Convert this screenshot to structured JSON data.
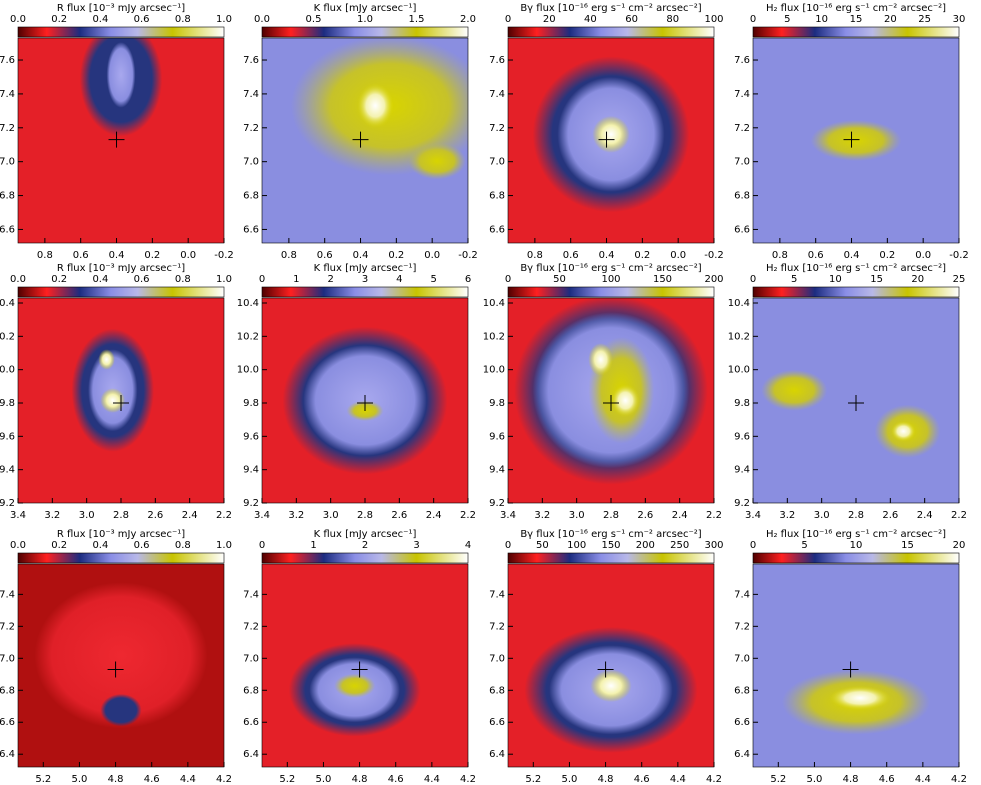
{
  "rows": [
    {
      "xlim": [
        0.95,
        -0.2
      ],
      "ylim": [
        6.52,
        7.73
      ],
      "xticks": [
        {
          "value": 0.8,
          "label": "0.8"
        },
        {
          "value": 0.6,
          "label": "0.6"
        },
        {
          "value": 0.4,
          "label": "0.4"
        },
        {
          "value": 0.2,
          "label": "0.2"
        },
        {
          "value": 0.0,
          "label": "0.0"
        },
        {
          "value": -0.2,
          "label": "-0.2"
        }
      ],
      "yticks": [
        {
          "value": 6.6,
          "label": "6.6"
        },
        {
          "value": 6.8,
          "label": "6.8"
        },
        {
          "value": 7.0,
          "label": "7.0"
        },
        {
          "value": 7.2,
          "label": "7.2"
        },
        {
          "value": 7.4,
          "label": "7.4"
        },
        {
          "value": 7.6,
          "label": "7.6"
        }
      ],
      "marker": [
        0.4,
        7.13
      ],
      "panels": [
        {
          "label": "R flux [10⁻³ mJy arcsec⁻¹]",
          "cbar_ticks": [
            "0.0",
            "0.2",
            "0.4",
            "0.6",
            "0.8",
            "1.0"
          ]
        },
        {
          "label": "K flux [mJy arcsec⁻¹]",
          "cbar_ticks": [
            "0.0",
            "0.5",
            "1.0",
            "1.5",
            "2.0"
          ]
        },
        {
          "label": "Bγ flux [10⁻¹⁶ erg s⁻¹ cm⁻² arcsec⁻²]",
          "cbar_ticks": [
            "0",
            "20",
            "40",
            "60",
            "80",
            "100"
          ]
        },
        {
          "label": "H₂ flux [10⁻¹⁶ erg s⁻¹ cm⁻² arcsec⁻²]",
          "cbar_ticks": [
            "0",
            "5",
            "10",
            "15",
            "20",
            "25",
            "30"
          ]
        }
      ]
    },
    {
      "xlim": [
        3.4,
        2.2
      ],
      "ylim": [
        9.2,
        10.43
      ],
      "xticks": [
        {
          "value": 3.4,
          "label": "3.4"
        },
        {
          "value": 3.2,
          "label": "3.2"
        },
        {
          "value": 3.0,
          "label": "3.0"
        },
        {
          "value": 2.8,
          "label": "2.8"
        },
        {
          "value": 2.6,
          "label": "2.6"
        },
        {
          "value": 2.4,
          "label": "2.4"
        },
        {
          "value": 2.2,
          "label": "2.2"
        }
      ],
      "yticks": [
        {
          "value": 9.2,
          "label": "9.2"
        },
        {
          "value": 9.4,
          "label": "9.4"
        },
        {
          "value": 9.6,
          "label": "9.6"
        },
        {
          "value": 9.8,
          "label": "9.8"
        },
        {
          "value": 10.0,
          "label": "10.0"
        },
        {
          "value": 10.2,
          "label": "10.2"
        },
        {
          "value": 10.4,
          "label": "10.4"
        }
      ],
      "marker": [
        2.8,
        9.8
      ],
      "panels": [
        {
          "label": "R flux [10⁻³ mJy arcsec⁻¹]",
          "cbar_ticks": [
            "0.0",
            "0.2",
            "0.4",
            "0.6",
            "0.8",
            "1.0"
          ]
        },
        {
          "label": "K flux [mJy arcsec⁻¹]",
          "cbar_ticks": [
            "0",
            "1",
            "2",
            "3",
            "4",
            "5",
            "6"
          ]
        },
        {
          "label": "Bγ flux [10⁻¹⁶ erg s⁻¹ cm⁻² arcsec⁻²]",
          "cbar_ticks": [
            "0",
            "50",
            "100",
            "150",
            "200"
          ]
        },
        {
          "label": "H₂ flux [10⁻¹⁶ erg s⁻¹ cm⁻² arcsec⁻²]",
          "cbar_ticks": [
            "0",
            "5",
            "10",
            "15",
            "20",
            "25"
          ]
        }
      ]
    },
    {
      "xlim": [
        5.34,
        4.2
      ],
      "ylim": [
        6.32,
        7.59
      ],
      "xticks": [
        {
          "value": 5.2,
          "label": "5.2"
        },
        {
          "value": 5.0,
          "label": "5.0"
        },
        {
          "value": 4.8,
          "label": "4.8"
        },
        {
          "value": 4.6,
          "label": "4.6"
        },
        {
          "value": 4.4,
          "label": "4.4"
        },
        {
          "value": 4.2,
          "label": "4.2"
        }
      ],
      "yticks": [
        {
          "value": 6.4,
          "label": "6.4"
        },
        {
          "value": 6.6,
          "label": "6.6"
        },
        {
          "value": 6.8,
          "label": "6.8"
        },
        {
          "value": 7.0,
          "label": "7.0"
        },
        {
          "value": 7.2,
          "label": "7.2"
        },
        {
          "value": 7.4,
          "label": "7.4"
        }
      ],
      "marker": [
        4.8,
        6.93
      ],
      "panels": [
        {
          "label": "R flux [10⁻³ mJy arcsec⁻¹]",
          "cbar_ticks": [
            "0.0",
            "0.2",
            "0.4",
            "0.6",
            "0.8",
            "1.0"
          ]
        },
        {
          "label": "K flux [mJy arcsec⁻¹]",
          "cbar_ticks": [
            "0",
            "1",
            "2",
            "3",
            "4"
          ]
        },
        {
          "label": "Bγ flux [10⁻¹⁶ erg s⁻¹ cm⁻² arcsec⁻²]",
          "cbar_ticks": [
            "0",
            "50",
            "100",
            "150",
            "200",
            "250",
            "300"
          ]
        },
        {
          "label": "H₂ flux [10⁻¹⁶ erg s⁻¹ cm⁻² arcsec⁻²]",
          "cbar_ticks": [
            "0",
            "5",
            "10",
            "15",
            "20"
          ]
        }
      ]
    }
  ]
}
